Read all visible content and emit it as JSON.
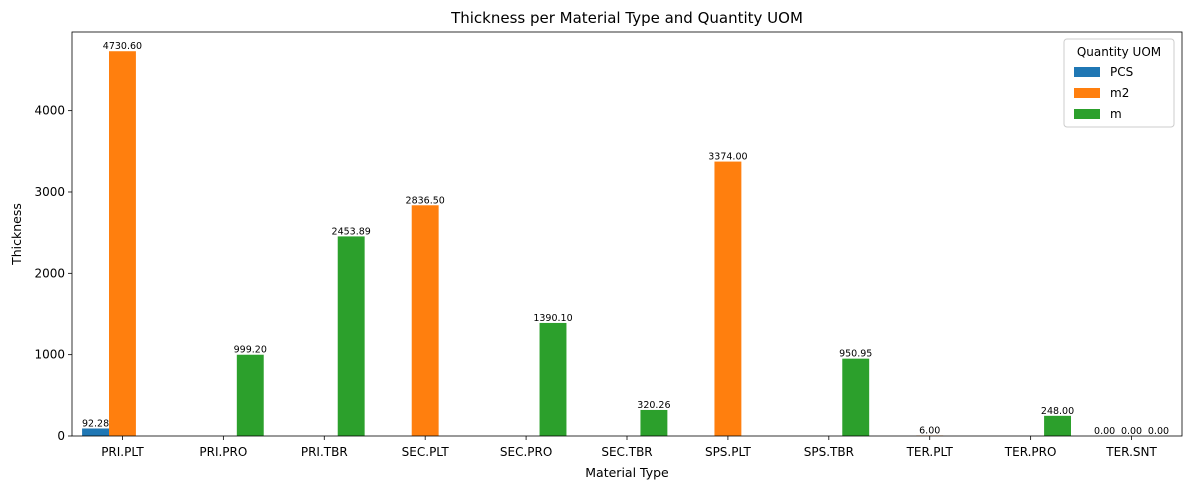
{
  "chart_data": {
    "type": "bar",
    "title": "Thickness per Material Type and Quantity UOM",
    "xlabel": "Material Type",
    "ylabel": "Thickness",
    "ylim": [
      0,
      4967
    ],
    "yticks": [
      0,
      1000,
      2000,
      3000,
      4000
    ],
    "grid": false,
    "categories": [
      "PRI.PLT",
      "PRI.PRO",
      "PRI.TBR",
      "SEC.PLT",
      "SEC.PRO",
      "SEC.TBR",
      "SPS.PLT",
      "SPS.TBR",
      "TER.PLT",
      "TER.PRO",
      "TER.SNT"
    ],
    "legend": {
      "title": "Quantity UOM",
      "placement": "upper right"
    },
    "series": [
      {
        "name": "PCS",
        "color": "#1f77b4",
        "values": [
          92.28,
          null,
          null,
          null,
          null,
          null,
          null,
          null,
          null,
          null,
          0.0
        ]
      },
      {
        "name": "m2",
        "color": "#ff7f0e",
        "values": [
          4730.6,
          null,
          null,
          2836.5,
          null,
          null,
          3374.0,
          null,
          6.0,
          null,
          0.0
        ]
      },
      {
        "name": "m",
        "color": "#2ca02c",
        "values": [
          null,
          999.2,
          2453.89,
          null,
          1390.1,
          320.26,
          null,
          950.95,
          null,
          248.0,
          0.0
        ]
      }
    ],
    "data_labels": [
      {
        "series": 0,
        "category": 0,
        "text": "92.28"
      },
      {
        "series": 1,
        "category": 0,
        "text": "4730.60"
      },
      {
        "series": 2,
        "category": 1,
        "text": "999.20"
      },
      {
        "series": 2,
        "category": 2,
        "text": "2453.89"
      },
      {
        "series": 1,
        "category": 3,
        "text": "2836.50"
      },
      {
        "series": 2,
        "category": 4,
        "text": "1390.10"
      },
      {
        "series": 2,
        "category": 5,
        "text": "320.26"
      },
      {
        "series": 1,
        "category": 6,
        "text": "3374.00"
      },
      {
        "series": 2,
        "category": 7,
        "text": "950.95"
      },
      {
        "series": 1,
        "category": 8,
        "text": "6.00"
      },
      {
        "series": 2,
        "category": 9,
        "text": "248.00"
      },
      {
        "series": 0,
        "category": 10,
        "text": "0.00"
      },
      {
        "series": 1,
        "category": 10,
        "text": "0.00"
      },
      {
        "series": 2,
        "category": 10,
        "text": "0.00"
      }
    ]
  }
}
